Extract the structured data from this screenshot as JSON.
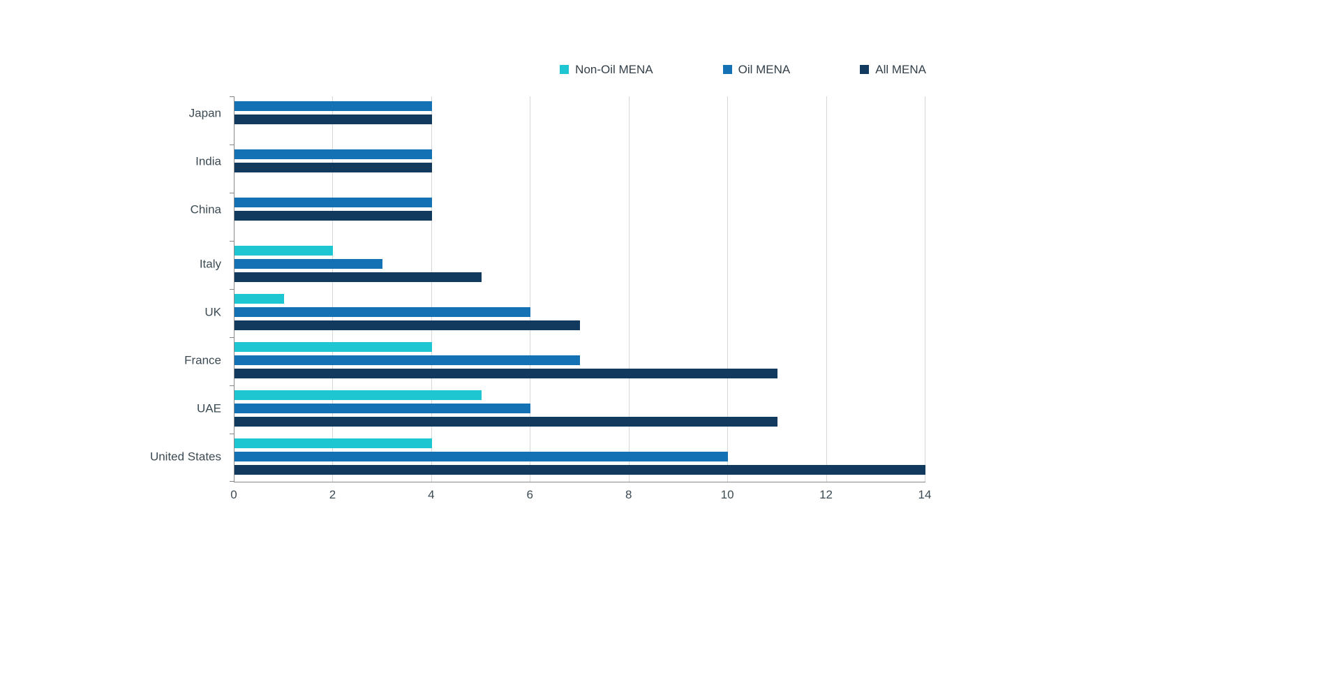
{
  "colors": {
    "background": "#ffffff",
    "axis": "#878787",
    "gridline": "#d7d7d7",
    "text": "#3c4a53",
    "legend_text": "#333f48"
  },
  "chart_data": {
    "type": "bar",
    "orientation": "horizontal",
    "title": "",
    "xlabel": "",
    "ylabel": "",
    "xlim": [
      0,
      14
    ],
    "xticks": [
      0,
      2,
      4,
      6,
      8,
      10,
      12,
      14
    ],
    "grid": true,
    "legend_position": "top-right",
    "categories": [
      "Japan",
      "India",
      "China",
      "Italy",
      "UK",
      "France",
      "UAE",
      "United States"
    ],
    "series": [
      {
        "name": "Non-Oil MENA",
        "color": "#1ec6d2",
        "values": [
          0,
          0,
          0,
          2,
          1,
          4,
          5,
          4
        ]
      },
      {
        "name": "Oil MENA",
        "color": "#1371b4",
        "values": [
          4,
          4,
          4,
          3,
          6,
          7,
          6,
          10
        ]
      },
      {
        "name": "All MENA",
        "color": "#123a5f",
        "values": [
          4,
          4,
          4,
          5,
          7,
          11,
          11,
          14
        ]
      }
    ]
  }
}
